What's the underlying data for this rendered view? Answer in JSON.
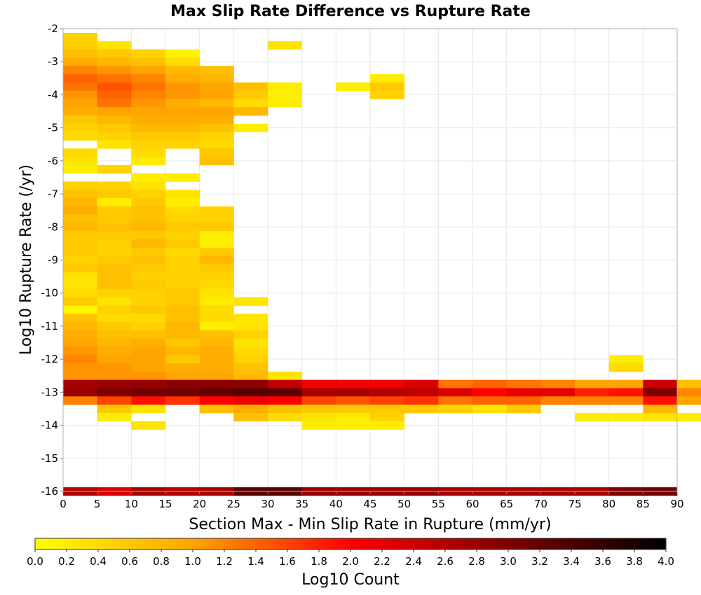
{
  "chart_data": {
    "type": "heatmap",
    "title": "Max Slip Rate Difference vs Rupture Rate",
    "xlabel": "Section Max - Min Slip Rate in Rupture (mm/yr)",
    "ylabel": "Log10 Rupture Rate (/yr)",
    "xlim": [
      0,
      90
    ],
    "ylim": [
      -16,
      -2
    ],
    "x_bin_width": 5,
    "y_bin_height": 0.25,
    "x_ticks": [
      "0",
      "5",
      "10",
      "15",
      "20",
      "25",
      "30",
      "35",
      "40",
      "45",
      "50",
      "55",
      "60",
      "65",
      "70",
      "75",
      "80",
      "85",
      "90"
    ],
    "y_ticks": [
      "-2",
      "-3",
      "-4",
      "-5",
      "-6",
      "-7",
      "-8",
      "-9",
      "-10",
      "-11",
      "-12",
      "-13",
      "-14",
      "-15",
      "-16"
    ],
    "grid": true,
    "colorbar": {
      "label": "Log10 Count",
      "range": [
        0,
        4
      ],
      "ticks": [
        "0.0",
        "0.2",
        "0.4",
        "0.6",
        "0.8",
        "1.0",
        "1.2",
        "1.4",
        "1.6",
        "1.8",
        "2.0",
        "2.2",
        "2.4",
        "2.6",
        "2.8",
        "3.0",
        "3.2",
        "3.4",
        "3.6",
        "3.8",
        "4.0"
      ],
      "colors": [
        "#ffff00",
        "#ffa500",
        "#ff0000",
        "#800000",
        "#000000"
      ]
    },
    "rows": [
      {
        "y": -2.25,
        "v": [
          0.5
        ]
      },
      {
        "y": -2.5,
        "v": [
          0.55,
          0.3,
          null,
          null,
          null,
          null,
          0.3
        ]
      },
      {
        "y": -2.75,
        "v": [
          0.7,
          0.6,
          0.5,
          0.15
        ]
      },
      {
        "y": -3.0,
        "v": [
          0.9,
          0.8,
          0.7,
          0.4
        ]
      },
      {
        "y": -3.25,
        "v": [
          1.2,
          1.1,
          1.0,
          0.8,
          0.7
        ]
      },
      {
        "y": -3.5,
        "v": [
          1.4,
          1.3,
          1.2,
          0.9,
          0.8,
          null,
          null,
          null,
          null,
          0.2
        ]
      },
      {
        "y": -3.75,
        "v": [
          1.3,
          1.5,
          1.3,
          1.1,
          1.0,
          0.7,
          0.2,
          null,
          0.2,
          0.6
        ]
      },
      {
        "y": -4.0,
        "v": [
          1.1,
          1.4,
          1.2,
          1.1,
          1.0,
          0.6,
          0.2,
          null,
          null,
          0.5
        ]
      },
      {
        "y": -4.25,
        "v": [
          1.0,
          1.3,
          1.1,
          0.9,
          0.8,
          0.4,
          0.2
        ]
      },
      {
        "y": -4.5,
        "v": [
          0.9,
          1.0,
          1.0,
          1.0,
          1.0,
          0.8
        ]
      },
      {
        "y": -4.75,
        "v": [
          0.6,
          0.8,
          0.9,
          0.9,
          0.9
        ]
      },
      {
        "y": -5.0,
        "v": [
          0.5,
          0.6,
          0.8,
          0.8,
          0.7,
          0.2
        ]
      },
      {
        "y": -5.25,
        "v": [
          0.4,
          0.5,
          0.6,
          0.6,
          0.5
        ]
      },
      {
        "y": -5.5,
        "v": [
          null,
          0.3,
          0.5,
          0.5,
          0.4
        ]
      },
      {
        "y": -5.75,
        "v": [
          0.4,
          null,
          0.4,
          null,
          0.6
        ]
      },
      {
        "y": -6.0,
        "v": [
          0.3,
          null,
          0.2,
          null,
          0.7
        ]
      },
      {
        "y": -6.25,
        "v": [
          0.2,
          0.5
        ]
      },
      {
        "y": -6.5,
        "v": [
          null,
          null,
          0.2,
          0.2
        ]
      },
      {
        "y": -6.75,
        "v": [
          0.5,
          0.5,
          0.3
        ]
      },
      {
        "y": -7.0,
        "v": [
          0.7,
          0.6,
          0.5,
          0.3
        ]
      },
      {
        "y": -7.25,
        "v": [
          0.8,
          0.2,
          0.6,
          0.2
        ]
      },
      {
        "y": -7.5,
        "v": [
          0.9,
          0.6,
          0.7,
          0.4,
          0.5
        ]
      },
      {
        "y": -7.75,
        "v": [
          0.7,
          0.6,
          0.7,
          0.5,
          0.5
        ]
      },
      {
        "y": -8.0,
        "v": [
          0.8,
          0.7,
          0.8,
          0.6,
          0.6
        ]
      },
      {
        "y": -8.25,
        "v": [
          0.6,
          0.6,
          0.6,
          0.5,
          0.2
        ]
      },
      {
        "y": -8.5,
        "v": [
          0.6,
          0.5,
          0.8,
          0.6,
          0.2
        ]
      },
      {
        "y": -8.75,
        "v": [
          0.6,
          0.5,
          0.6,
          0.4,
          0.6
        ]
      },
      {
        "y": -9.0,
        "v": [
          0.5,
          0.6,
          0.7,
          0.5,
          0.8
        ]
      },
      {
        "y": -9.25,
        "v": [
          0.6,
          0.7,
          0.6,
          0.5,
          0.6
        ]
      },
      {
        "y": -9.5,
        "v": [
          0.3,
          0.7,
          0.5,
          0.5,
          0.5
        ]
      },
      {
        "y": -9.75,
        "v": [
          0.3,
          0.7,
          0.6,
          0.5,
          0.4
        ]
      },
      {
        "y": -10.0,
        "v": [
          0.4,
          0.5,
          0.5,
          0.6,
          0.3
        ]
      },
      {
        "y": -10.25,
        "v": [
          0.6,
          0.3,
          0.5,
          0.6,
          0.2,
          0.3
        ]
      },
      {
        "y": -10.5,
        "v": [
          0.1,
          0.5,
          0.6,
          0.7,
          0.4
        ]
      },
      {
        "y": -10.75,
        "v": [
          0.7,
          0.4,
          0.4,
          0.7,
          0.4,
          0.3
        ]
      },
      {
        "y": -11.0,
        "v": [
          0.8,
          0.6,
          0.5,
          0.8,
          0.2,
          0.3
        ]
      },
      {
        "y": -11.25,
        "v": [
          0.9,
          0.7,
          0.7,
          0.8,
          0.7,
          0.5
        ]
      },
      {
        "y": -11.5,
        "v": [
          1.0,
          0.8,
          0.9,
          0.6,
          0.8,
          0.3
        ]
      },
      {
        "y": -11.75,
        "v": [
          1.1,
          0.9,
          1.0,
          0.8,
          0.9,
          0.4
        ]
      },
      {
        "y": -12.0,
        "v": [
          1.2,
          1.0,
          1.0,
          0.6,
          0.9,
          0.5,
          null,
          null,
          null,
          null,
          null,
          null,
          null,
          null,
          null,
          null,
          0.2
        ]
      },
      {
        "y": -12.25,
        "v": [
          1.1,
          1.1,
          1.0,
          0.9,
          0.9,
          0.7,
          null,
          null,
          null,
          null,
          null,
          null,
          null,
          null,
          null,
          null,
          0.4
        ]
      },
      {
        "y": -12.5,
        "v": [
          1.1,
          1.1,
          1.1,
          1.0,
          1.0,
          0.8,
          0.3
        ]
      },
      {
        "y": -12.75,
        "v": [
          2.7,
          2.8,
          2.8,
          2.9,
          2.9,
          2.9,
          2.5,
          2.1,
          2.1,
          2.1,
          2.3,
          1.3,
          1.4,
          1.3,
          1.2,
          1.0,
          1.0,
          2.4,
          0.7
        ]
      },
      {
        "y": -13.0,
        "v": [
          2.8,
          3.0,
          3.1,
          3.1,
          3.2,
          3.3,
          3.3,
          2.7,
          2.7,
          2.6,
          2.5,
          2.3,
          2.0,
          2.2,
          2.2,
          1.8,
          1.9,
          3.0,
          1.2
        ]
      },
      {
        "y": -13.25,
        "v": [
          1.2,
          1.6,
          1.9,
          1.7,
          2.0,
          2.1,
          2.0,
          1.6,
          1.5,
          1.6,
          1.7,
          1.3,
          1.4,
          1.4,
          1.2,
          1.2,
          1.2,
          1.9,
          1.0
        ]
      },
      {
        "y": -13.5,
        "v": [
          null,
          0.6,
          0.3,
          null,
          0.7,
          0.9,
          0.7,
          0.6,
          0.6,
          0.6,
          0.6,
          0.5,
          0.3,
          0.6,
          null,
          null,
          null,
          0.8
        ]
      },
      {
        "y": -13.75,
        "v": [
          null,
          0.2,
          null,
          null,
          null,
          0.7,
          0.4,
          0.3,
          0.2,
          0.5,
          null,
          null,
          null,
          null,
          null,
          0.2,
          0.2,
          0.3,
          0.2
        ]
      },
      {
        "y": -14.0,
        "v": [
          null,
          null,
          0.3,
          null,
          null,
          null,
          null,
          0.2,
          0.2,
          0.2
        ]
      },
      {
        "y": -16.0,
        "v": [
          2.6,
          2.3,
          2.7,
          2.6,
          2.7,
          3.3,
          3.3,
          2.8,
          2.8,
          2.8,
          2.8,
          2.7,
          2.7,
          2.7,
          2.7,
          2.7,
          3.0,
          3.1
        ]
      }
    ]
  }
}
